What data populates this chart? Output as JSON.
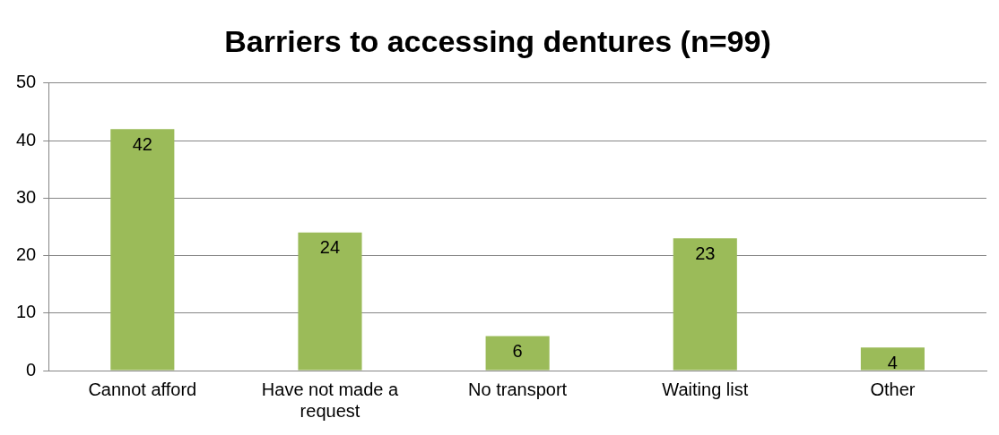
{
  "chart_data": {
    "type": "bar",
    "title": "Barriers to accessing dentures (n=99)",
    "categories": [
      "Cannot afford",
      "Have not made a request",
      "No transport",
      "Waiting list",
      "Other"
    ],
    "values": [
      42,
      24,
      6,
      23,
      4
    ],
    "color": "#9bbb59",
    "ylim": [
      0,
      50
    ],
    "yticks": [
      0,
      10,
      20,
      30,
      40,
      50
    ],
    "grid": "y",
    "legend": false,
    "data_labels": true
  }
}
